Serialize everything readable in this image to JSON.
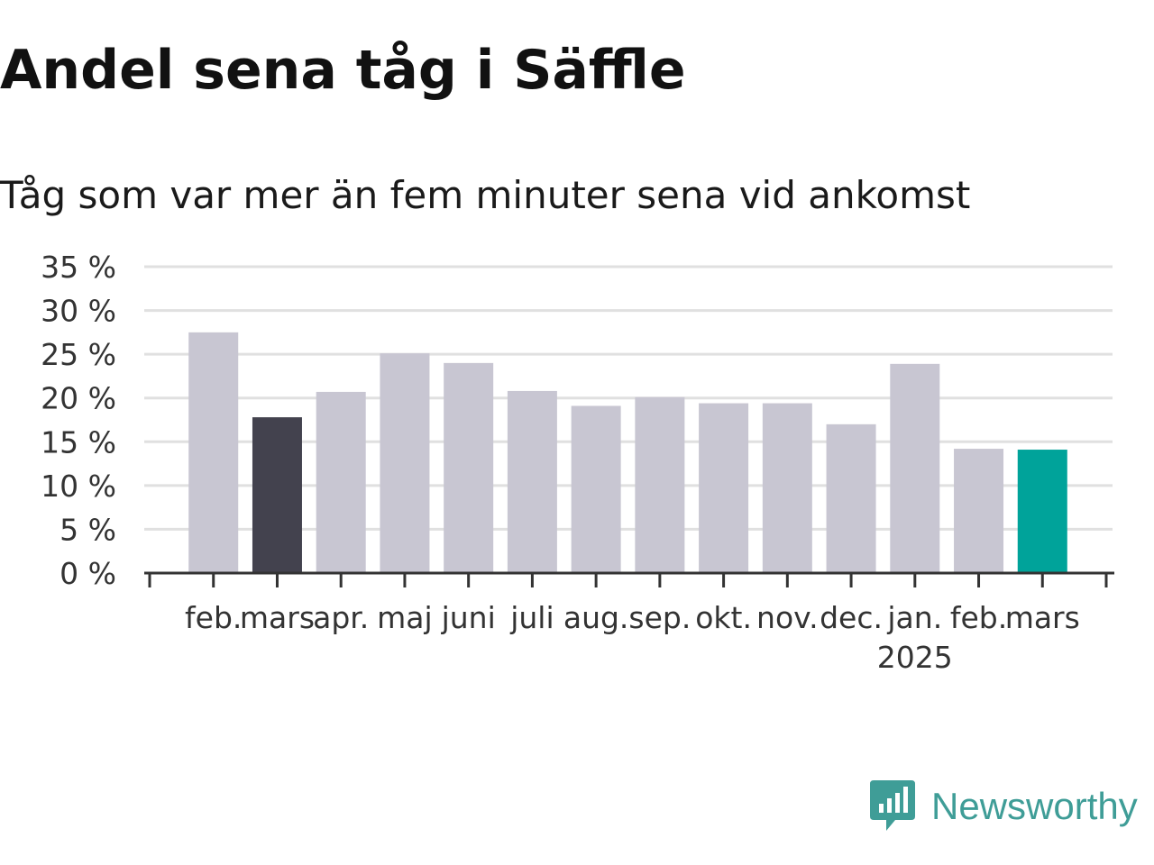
{
  "title": "Andel sena tåg i Säffle",
  "subtitle": "Tåg som var mer än fem minuter sena vid ankomst",
  "brand": {
    "name": "Newsworthy",
    "color": "#3f9d97",
    "icon": "newsworthy-bar-chart-icon"
  },
  "chart_data": {
    "type": "bar",
    "categories": [
      "feb.",
      "mars",
      "apr.",
      "maj",
      "juni",
      "juli",
      "aug.",
      "sep.",
      "okt.",
      "nov.",
      "dec.",
      "jan.",
      "feb.",
      "mars"
    ],
    "year_labels": [
      {
        "category_index": 11,
        "label": "2025"
      }
    ],
    "values": [
      27.5,
      17.8,
      20.7,
      25.1,
      24.0,
      20.8,
      19.1,
      20.1,
      19.4,
      19.4,
      17.0,
      23.9,
      14.2,
      14.1
    ],
    "highlight": [
      {
        "index": 1,
        "color": "#43424e"
      },
      {
        "index": 13,
        "color": "#00a39a"
      }
    ],
    "default_color": "#c8c6d2",
    "ylim": [
      0,
      35
    ],
    "yticks": [
      0,
      5,
      10,
      15,
      20,
      25,
      30,
      35
    ],
    "ytick_suffix": " %",
    "grid": true,
    "xlabel": "",
    "ylabel": ""
  }
}
